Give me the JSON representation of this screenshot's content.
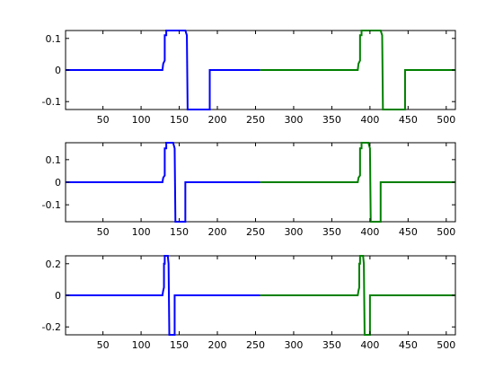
{
  "chart_data": [
    {
      "type": "line",
      "xlim": [
        1,
        512
      ],
      "ylim": [
        -0.125,
        0.125
      ],
      "xticks": [
        50,
        100,
        150,
        200,
        250,
        300,
        350,
        400,
        450,
        500
      ],
      "yticks": [
        -0.1,
        0,
        0.1
      ],
      "ytick_labels": [
        "-0.1",
        "0",
        "0.1"
      ],
      "grid": false,
      "series": [
        {
          "color": "#0000ff",
          "x": [
            1,
            128,
            129,
            131,
            131,
            133,
            133,
            158,
            160,
            161,
            161,
            190,
            190,
            256
          ],
          "y": [
            0,
            0,
            0.02,
            0.03,
            0.11,
            0.11,
            0.125,
            0.125,
            0.11,
            -0.125,
            -0.125,
            -0.125,
            0,
            0
          ]
        },
        {
          "color": "#008000",
          "x": [
            256,
            384,
            385,
            387,
            387,
            389,
            389,
            414,
            416,
            417,
            417,
            446,
            446,
            512
          ],
          "y": [
            0,
            0,
            0.02,
            0.03,
            0.11,
            0.11,
            0.125,
            0.125,
            0.11,
            -0.125,
            -0.125,
            -0.125,
            0,
            0
          ]
        }
      ]
    },
    {
      "type": "line",
      "xlim": [
        1,
        512
      ],
      "ylim": [
        -0.175,
        0.175
      ],
      "xticks": [
        50,
        100,
        150,
        200,
        250,
        300,
        350,
        400,
        450,
        500
      ],
      "yticks": [
        -0.1,
        0,
        0.1
      ],
      "ytick_labels": [
        "-0.1",
        "0",
        "0.1"
      ],
      "grid": false,
      "series": [
        {
          "color": "#0000ff",
          "x": [
            1,
            128,
            129,
            131,
            131,
            133,
            133,
            142,
            144,
            145,
            145,
            158,
            158,
            256
          ],
          "y": [
            0,
            0,
            0.02,
            0.03,
            0.15,
            0.15,
            0.175,
            0.175,
            0.15,
            -0.175,
            -0.175,
            -0.175,
            0,
            0
          ]
        },
        {
          "color": "#008000",
          "x": [
            256,
            384,
            385,
            387,
            387,
            389,
            389,
            398,
            400,
            401,
            401,
            414,
            414,
            512
          ],
          "y": [
            0,
            0,
            0.02,
            0.03,
            0.15,
            0.15,
            0.175,
            0.175,
            0.15,
            -0.175,
            -0.175,
            -0.175,
            0,
            0
          ]
        }
      ]
    },
    {
      "type": "line",
      "xlim": [
        1,
        512
      ],
      "ylim": [
        -0.25,
        0.25
      ],
      "xticks": [
        50,
        100,
        150,
        200,
        250,
        300,
        350,
        400,
        450,
        500
      ],
      "yticks": [
        -0.2,
        0,
        0.2
      ],
      "ytick_labels": [
        "-0.2",
        "0",
        "0.2"
      ],
      "grid": false,
      "series": [
        {
          "color": "#0000ff",
          "x": [
            1,
            128,
            129,
            130,
            130,
            131,
            131,
            135,
            136,
            137,
            137,
            144,
            144,
            256
          ],
          "y": [
            0,
            0,
            0.03,
            0.05,
            0.2,
            0.2,
            0.25,
            0.25,
            0.2,
            -0.25,
            -0.25,
            -0.25,
            0,
            0
          ]
        },
        {
          "color": "#008000",
          "x": [
            256,
            384,
            385,
            386,
            386,
            387,
            387,
            391,
            392,
            393,
            393,
            400,
            400,
            512
          ],
          "y": [
            0,
            0,
            0.03,
            0.05,
            0.2,
            0.2,
            0.25,
            0.25,
            0.2,
            -0.25,
            -0.25,
            -0.25,
            0,
            0
          ]
        }
      ]
    }
  ]
}
